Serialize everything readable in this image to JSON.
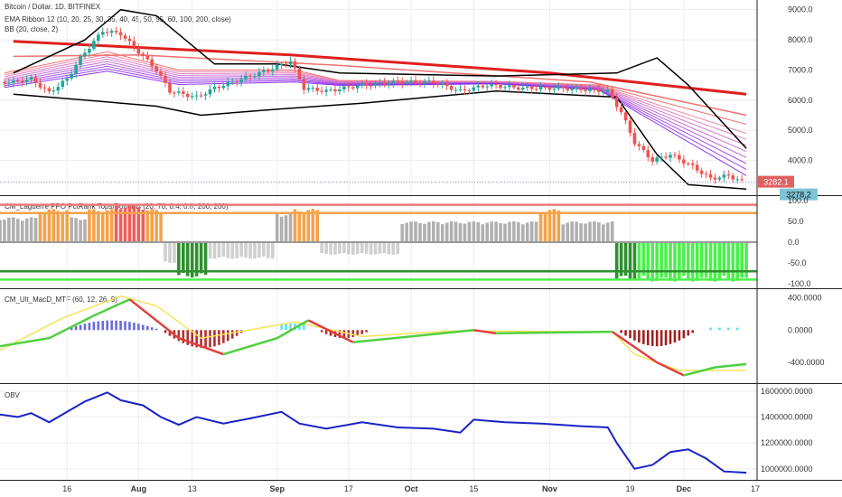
{
  "chart_data": [
    {
      "id": "price",
      "type": "candlestick",
      "title_lines": [
        "Bitcoin / Dollar, 1D, BITFINEX",
        "EMA Ribbon 12 (10, 20, 25, 30, 35, 40, 45, 50, 55, 60, 100, 200, close)",
        "BB (20, close, 2)"
      ],
      "y_ticks": [
        "9000.0",
        "8000.0",
        "7000.0",
        "6000.0",
        "5000.0",
        "4000.0"
      ],
      "ylim": [
        3000,
        9200
      ],
      "price_label": "3282.1",
      "last_label": "3278.2",
      "close_path": [
        {
          "d": "07-04",
          "v": 6600
        },
        {
          "d": "07-08",
          "v": 6700
        },
        {
          "d": "07-12",
          "v": 6250
        },
        {
          "d": "07-16",
          "v": 6700
        },
        {
          "d": "07-19",
          "v": 7400
        },
        {
          "d": "07-24",
          "v": 8300
        },
        {
          "d": "07-28",
          "v": 8200
        },
        {
          "d": "08-01",
          "v": 7600
        },
        {
          "d": "08-05",
          "v": 7000
        },
        {
          "d": "08-08",
          "v": 6300
        },
        {
          "d": "08-11",
          "v": 6200
        },
        {
          "d": "08-14",
          "v": 6100
        },
        {
          "d": "08-18",
          "v": 6400
        },
        {
          "d": "08-24",
          "v": 6700
        },
        {
          "d": "08-30",
          "v": 7000
        },
        {
          "d": "09-04",
          "v": 7300
        },
        {
          "d": "09-07",
          "v": 6400
        },
        {
          "d": "09-12",
          "v": 6300
        },
        {
          "d": "09-20",
          "v": 6500
        },
        {
          "d": "09-28",
          "v": 6600
        },
        {
          "d": "10-06",
          "v": 6600
        },
        {
          "d": "10-12",
          "v": 6300
        },
        {
          "d": "10-18",
          "v": 6500
        },
        {
          "d": "10-26",
          "v": 6400
        },
        {
          "d": "11-04",
          "v": 6400
        },
        {
          "d": "11-14",
          "v": 6300
        },
        {
          "d": "11-17",
          "v": 5600
        },
        {
          "d": "11-20",
          "v": 4600
        },
        {
          "d": "11-24",
          "v": 4000
        },
        {
          "d": "11-28",
          "v": 4200
        },
        {
          "d": "12-03",
          "v": 3800
        },
        {
          "d": "12-07",
          "v": 3400
        },
        {
          "d": "12-11",
          "v": 3500
        },
        {
          "d": "12-14",
          "v": 3300
        }
      ],
      "ema200": [
        {
          "d": "07-04",
          "v": 7950
        },
        {
          "d": "09-04",
          "v": 7500
        },
        {
          "d": "11-01",
          "v": 6900
        },
        {
          "d": "12-15",
          "v": 6200
        }
      ],
      "ema100": [
        {
          "d": "07-04",
          "v": 7450
        },
        {
          "d": "08-01",
          "v": 7500
        },
        {
          "d": "09-15",
          "v": 7150
        },
        {
          "d": "11-10",
          "v": 6600
        },
        {
          "d": "12-15",
          "v": 5500
        }
      ],
      "bb_upper": [
        {
          "d": "07-04",
          "v": 6900
        },
        {
          "d": "07-20",
          "v": 8000
        },
        {
          "d": "07-28",
          "v": 9000
        },
        {
          "d": "08-05",
          "v": 8800
        },
        {
          "d": "08-18",
          "v": 7200
        },
        {
          "d": "09-01",
          "v": 7200
        },
        {
          "d": "09-15",
          "v": 6900
        },
        {
          "d": "10-20",
          "v": 6800
        },
        {
          "d": "11-16",
          "v": 6900
        },
        {
          "d": "11-25",
          "v": 7400
        },
        {
          "d": "12-02",
          "v": 6500
        },
        {
          "d": "12-15",
          "v": 4400
        }
      ],
      "bb_lower": [
        {
          "d": "07-04",
          "v": 6200
        },
        {
          "d": "07-20",
          "v": 6000
        },
        {
          "d": "08-05",
          "v": 5800
        },
        {
          "d": "08-15",
          "v": 5500
        },
        {
          "d": "09-01",
          "v": 5700
        },
        {
          "d": "09-20",
          "v": 5900
        },
        {
          "d": "10-20",
          "v": 6300
        },
        {
          "d": "11-16",
          "v": 6100
        },
        {
          "d": "11-25",
          "v": 4200
        },
        {
          "d": "12-02",
          "v": 3200
        },
        {
          "d": "12-15",
          "v": 3050
        }
      ],
      "ribbon_end": [
        {
          "v": 5200
        },
        {
          "v": 4900
        },
        {
          "v": 4700
        },
        {
          "v": 4500
        },
        {
          "v": 4300
        },
        {
          "v": 4100
        },
        {
          "v": 3900
        },
        {
          "v": 3700
        },
        {
          "v": 3500
        }
      ]
    },
    {
      "id": "laguerre",
      "type": "histogram",
      "title": "CM_Laguerre PPO PctRank Tops/Bottoms (20, 70, 0.4, 0.8, 200, 200)",
      "y_ticks": [
        "100.0",
        "50.0",
        "0.0",
        "-50.0",
        "-100.0"
      ],
      "ylim": [
        -100,
        100
      ],
      "levels": [
        90,
        70,
        -70,
        -90
      ],
      "segments": [
        {
          "from": "07-01",
          "to": "07-09",
          "v": 60,
          "c": "#b0b0b0"
        },
        {
          "from": "07-10",
          "to": "07-16",
          "v": 80,
          "c": "#f5a24a"
        },
        {
          "from": "07-17",
          "to": "07-20",
          "v": 60,
          "c": "#b0b0b0"
        },
        {
          "from": "07-21",
          "to": "07-26",
          "v": 80,
          "c": "#f5a24a"
        },
        {
          "from": "07-27",
          "to": "08-02",
          "v": 90,
          "c": "#f25a5a"
        },
        {
          "from": "08-03",
          "to": "08-06",
          "v": 80,
          "c": "#f5a24a"
        },
        {
          "from": "08-07",
          "to": "08-09",
          "v": -50,
          "c": "#cfcfcf"
        },
        {
          "from": "08-10",
          "to": "08-16",
          "v": -85,
          "c": "#2e8f2e"
        },
        {
          "from": "08-17",
          "to": "08-31",
          "v": -40,
          "c": "#cfcfcf"
        },
        {
          "from": "09-01",
          "to": "09-04",
          "v": 70,
          "c": "#b0b0b0"
        },
        {
          "from": "09-05",
          "to": "09-10",
          "v": 80,
          "c": "#f5a24a"
        },
        {
          "from": "09-11",
          "to": "09-28",
          "v": -30,
          "c": "#cfcfcf"
        },
        {
          "from": "09-29",
          "to": "10-29",
          "v": 50,
          "c": "#b0b0b0"
        },
        {
          "from": "10-30",
          "to": "11-03",
          "v": 80,
          "c": "#f5a24a"
        },
        {
          "from": "11-04",
          "to": "11-15",
          "v": 50,
          "c": "#b0b0b0"
        },
        {
          "from": "11-16",
          "to": "11-20",
          "v": -90,
          "c": "#2e8f2e"
        },
        {
          "from": "11-21",
          "to": "12-15",
          "v": -95,
          "c": "#4cf04c"
        }
      ]
    },
    {
      "id": "macd",
      "type": "line",
      "title": "CM_Ult_MacD_MTF (60, 12, 26, 9)",
      "y_ticks": [
        "400.0000",
        "0.0000",
        "-400.0000"
      ],
      "ylim": [
        -600,
        450
      ],
      "series": [
        {
          "color": "#f5e35a",
          "values": [
            {
              "d": "07-01",
              "v": -250
            },
            {
              "d": "07-15",
              "v": 150
            },
            {
              "d": "07-28",
              "v": 420
            },
            {
              "d": "08-05",
              "v": 300
            },
            {
              "d": "08-15",
              "v": -100
            },
            {
              "d": "08-31",
              "v": 50
            },
            {
              "d": "09-05",
              "v": 100
            },
            {
              "d": "09-20",
              "v": -80
            },
            {
              "d": "10-10",
              "v": -10
            },
            {
              "d": "11-15",
              "v": -20
            },
            {
              "d": "11-20",
              "v": -300
            },
            {
              "d": "11-30",
              "v": -500
            },
            {
              "d": "12-15",
              "v": -500
            }
          ]
        },
        {
          "color": "#50d040",
          "values": [
            {
              "d": "07-01",
              "v": -200
            },
            {
              "d": "07-12",
              "v": -100
            },
            {
              "d": "07-22",
              "v": 180
            },
            {
              "d": "07-30",
              "v": 380
            }
          ]
        },
        {
          "color": "#e04040",
          "values": [
            {
              "d": "07-30",
              "v": 380
            },
            {
              "d": "08-10",
              "v": -100
            },
            {
              "d": "08-20",
              "v": -300
            }
          ]
        },
        {
          "color": "#50d040",
          "values": [
            {
              "d": "08-20",
              "v": -300
            },
            {
              "d": "09-01",
              "v": -100
            },
            {
              "d": "09-08",
              "v": 120
            }
          ]
        },
        {
          "color": "#e04040",
          "values": [
            {
              "d": "09-08",
              "v": 120
            },
            {
              "d": "09-18",
              "v": -150
            }
          ]
        },
        {
          "color": "#50d040",
          "values": [
            {
              "d": "09-18",
              "v": -150
            },
            {
              "d": "10-15",
              "v": 0
            }
          ]
        },
        {
          "color": "#e04040",
          "values": [
            {
              "d": "10-15",
              "v": 0
            },
            {
              "d": "10-20",
              "v": -40
            }
          ]
        },
        {
          "color": "#50d040",
          "values": [
            {
              "d": "10-20",
              "v": -40
            },
            {
              "d": "11-15",
              "v": -20
            }
          ]
        },
        {
          "color": "#e04040",
          "values": [
            {
              "d": "11-15",
              "v": -20
            },
            {
              "d": "11-25",
              "v": -400
            },
            {
              "d": "12-01",
              "v": -560
            }
          ]
        },
        {
          "color": "#50d040",
          "values": [
            {
              "d": "12-01",
              "v": -560
            },
            {
              "d": "12-08",
              "v": -460
            },
            {
              "d": "12-15",
              "v": -420
            }
          ]
        }
      ]
    },
    {
      "id": "obv",
      "type": "line",
      "title": "OBV",
      "y_ticks": [
        "1600000.0000",
        "1400000.0000",
        "1200000.0000",
        "1000000.0000"
      ],
      "ylim": [
        950000,
        1620000
      ],
      "values": [
        {
          "d": "07-01",
          "v": 1420000
        },
        {
          "d": "07-05",
          "v": 1400000
        },
        {
          "d": "07-08",
          "v": 1430000
        },
        {
          "d": "07-12",
          "v": 1360000
        },
        {
          "d": "07-16",
          "v": 1440000
        },
        {
          "d": "07-20",
          "v": 1520000
        },
        {
          "d": "07-25",
          "v": 1590000
        },
        {
          "d": "07-28",
          "v": 1530000
        },
        {
          "d": "08-02",
          "v": 1490000
        },
        {
          "d": "08-06",
          "v": 1400000
        },
        {
          "d": "08-10",
          "v": 1340000
        },
        {
          "d": "08-14",
          "v": 1400000
        },
        {
          "d": "08-20",
          "v": 1350000
        },
        {
          "d": "08-26",
          "v": 1390000
        },
        {
          "d": "09-02",
          "v": 1440000
        },
        {
          "d": "09-06",
          "v": 1350000
        },
        {
          "d": "09-12",
          "v": 1310000
        },
        {
          "d": "09-20",
          "v": 1360000
        },
        {
          "d": "09-28",
          "v": 1320000
        },
        {
          "d": "10-06",
          "v": 1310000
        },
        {
          "d": "10-12",
          "v": 1280000
        },
        {
          "d": "10-15",
          "v": 1380000
        },
        {
          "d": "10-22",
          "v": 1360000
        },
        {
          "d": "10-30",
          "v": 1350000
        },
        {
          "d": "11-08",
          "v": 1330000
        },
        {
          "d": "11-14",
          "v": 1320000
        },
        {
          "d": "11-16",
          "v": 1200000
        },
        {
          "d": "11-20",
          "v": 1000000
        },
        {
          "d": "11-24",
          "v": 1030000
        },
        {
          "d": "11-28",
          "v": 1130000
        },
        {
          "d": "12-02",
          "v": 1150000
        },
        {
          "d": "12-06",
          "v": 1080000
        },
        {
          "d": "12-10",
          "v": 980000
        },
        {
          "d": "12-15",
          "v": 970000
        }
      ]
    }
  ],
  "x_axis": {
    "ticks": [
      {
        "label": "16",
        "d": "07-16",
        "bold": false
      },
      {
        "label": "Aug",
        "d": "08-01",
        "bold": true
      },
      {
        "label": "13",
        "d": "08-13",
        "bold": false
      },
      {
        "label": "Sep",
        "d": "09-01",
        "bold": true
      },
      {
        "label": "17",
        "d": "09-17",
        "bold": false
      },
      {
        "label": "Oct",
        "d": "10-01",
        "bold": true
      },
      {
        "label": "15",
        "d": "10-15",
        "bold": false
      },
      {
        "label": "Nov",
        "d": "11-01",
        "bold": true
      },
      {
        "label": "19",
        "d": "11-19",
        "bold": false
      },
      {
        "label": "Dec",
        "d": "12-01",
        "bold": true
      },
      {
        "label": "17",
        "d": "12-17",
        "bold": false
      }
    ]
  },
  "colors": {
    "ema200": "#e01f1f",
    "ema100": "#f07070",
    "bb": "#000000",
    "up": "#26a69a",
    "down": "#ef5350",
    "ribbon": [
      "#f06060",
      "#ee80a0",
      "#e070c0",
      "#d070d0",
      "#c060d8",
      "#b050e0",
      "#a040e8",
      "#9030f0",
      "#8020f0"
    ],
    "obv": "#1a22c8",
    "grid": "#eeeeee",
    "price_label": "#e06060",
    "last_label": "#7fc4d6"
  }
}
